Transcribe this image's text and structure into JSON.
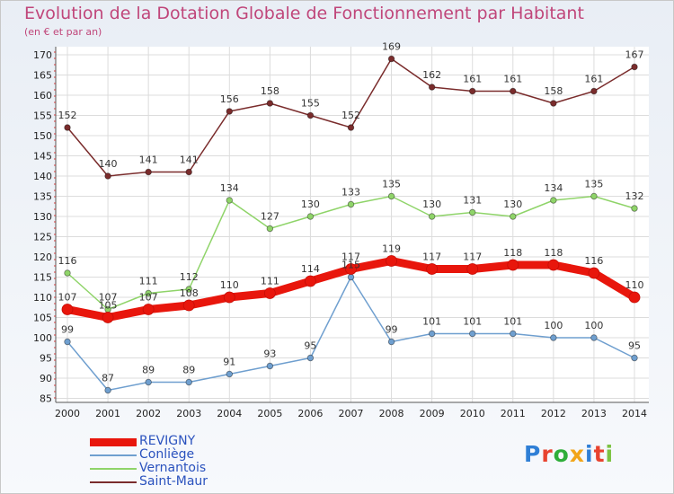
{
  "header": {
    "title": "Evolution de la Dotation Globale de Fonctionnement par Habitant",
    "subtitle": "(en € et par an)"
  },
  "logo": {
    "text": "Proxiti",
    "colors": [
      "#2f7fd6",
      "#e8432f",
      "#2fae3a",
      "#f2a51a",
      "#2f7fd6",
      "#e8432f",
      "#7cc242"
    ]
  },
  "chart_data": {
    "type": "line",
    "title": "Evolution de la Dotation Globale de Fonctionnement par Habitant",
    "subtitle": "(en € et par an)",
    "xlabel": "",
    "ylabel": "",
    "x": [
      "2000",
      "2001",
      "2002",
      "2003",
      "2004",
      "2005",
      "2006",
      "2007",
      "2008",
      "2009",
      "2010",
      "2011",
      "2012",
      "2013",
      "2014"
    ],
    "ylim": [
      84,
      172
    ],
    "yticks": [
      85,
      90,
      95,
      100,
      105,
      110,
      115,
      120,
      125,
      130,
      135,
      140,
      145,
      150,
      155,
      160,
      165,
      170
    ],
    "grid": true,
    "legend_position": "bottom-left",
    "series": [
      {
        "name": "REVIGNY",
        "color": "#e8160c",
        "values": [
          107,
          105,
          107,
          108,
          110,
          111,
          114,
          117,
          119,
          117,
          117,
          118,
          118,
          116,
          110
        ]
      },
      {
        "name": "Conliège",
        "color": "#6f9fcf",
        "values": [
          99,
          87,
          89,
          89,
          91,
          93,
          95,
          115,
          99,
          101,
          101,
          101,
          100,
          100,
          95
        ]
      },
      {
        "name": "Vernantois",
        "color": "#8fd469",
        "values": [
          116,
          107,
          111,
          112,
          134,
          127,
          130,
          133,
          135,
          130,
          131,
          130,
          134,
          135,
          132
        ]
      },
      {
        "name": "Saint-Maur",
        "color": "#7a2c2c",
        "values": [
          152,
          140,
          141,
          141,
          156,
          158,
          155,
          152,
          169,
          162,
          161,
          161,
          158,
          161,
          167
        ]
      }
    ]
  }
}
